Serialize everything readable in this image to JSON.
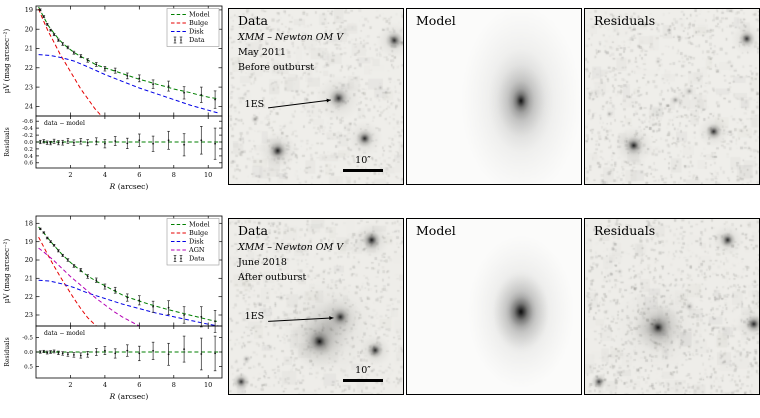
{
  "chart_data": [
    {
      "type": "line",
      "ylabel": "μV (mag arcsec⁻²)",
      "xlabel_italic": "R",
      "xlabel_rest": " (arcsec)",
      "x_min": 0,
      "x_max": 10.8,
      "y_top": 18.8,
      "y_bottom": 24.5,
      "x_ticks": [
        2,
        4,
        6,
        8,
        10
      ],
      "y_ticks": [
        19,
        20,
        21,
        22,
        23,
        24
      ],
      "series": [
        {
          "name": "Model",
          "color": "#007f00",
          "x": [
            0.15,
            0.4,
            0.7,
            1.0,
            1.4,
            1.8,
            2.2,
            2.6,
            3.0,
            3.5,
            4.0,
            4.5,
            5.0,
            5.5,
            6.0,
            6.5,
            7.0,
            7.5,
            8.0,
            8.5,
            9.0,
            9.5,
            10.0,
            10.5
          ],
          "y": [
            18.85,
            19.3,
            19.8,
            20.16,
            20.6,
            20.93,
            21.2,
            21.42,
            21.6,
            21.85,
            22.0,
            22.15,
            22.3,
            22.45,
            22.6,
            22.72,
            22.85,
            22.97,
            23.1,
            23.2,
            23.3,
            23.42,
            23.52,
            23.6
          ]
        },
        {
          "name": "Bulge",
          "color": "#e60000",
          "x": [
            0.15,
            0.4,
            0.7,
            1.0,
            1.4,
            1.8,
            2.2,
            2.6,
            3.0,
            3.4,
            3.8
          ],
          "y": [
            18.95,
            19.5,
            20.1,
            20.6,
            21.3,
            21.9,
            22.5,
            23.1,
            23.6,
            24.1,
            24.5
          ]
        },
        {
          "name": "Disk",
          "color": "#0000e6",
          "x": [
            0.15,
            0.8,
            1.5,
            2.2,
            3.0,
            4.0,
            5.0,
            6.0,
            7.0,
            8.0,
            9.0,
            10.0,
            10.6
          ],
          "y": [
            21.32,
            21.36,
            21.48,
            21.65,
            21.95,
            22.35,
            22.7,
            23.05,
            23.35,
            23.65,
            23.95,
            24.2,
            24.35
          ]
        }
      ],
      "data": {
        "name": "Data",
        "color": "#000000",
        "x": [
          0.25,
          0.45,
          0.65,
          0.85,
          1.05,
          1.3,
          1.55,
          1.85,
          2.2,
          2.6,
          3.0,
          3.5,
          4.0,
          4.6,
          5.3,
          6.0,
          6.8,
          7.7,
          8.6,
          9.6,
          10.4
        ],
        "y": [
          19.0,
          19.35,
          19.75,
          20.05,
          20.28,
          20.57,
          20.77,
          20.95,
          21.22,
          21.4,
          21.62,
          21.83,
          22.05,
          22.15,
          22.42,
          22.55,
          22.85,
          22.95,
          23.3,
          23.4,
          23.65
        ],
        "yerr": [
          0.05,
          0.05,
          0.05,
          0.05,
          0.06,
          0.06,
          0.07,
          0.07,
          0.08,
          0.08,
          0.09,
          0.1,
          0.12,
          0.13,
          0.15,
          0.18,
          0.22,
          0.26,
          0.32,
          0.4,
          0.45
        ]
      },
      "residuals": {
        "ylabel": "Residuals",
        "label": "data − model",
        "y_top": -0.75,
        "y_bottom": 0.75,
        "y_ticks": [
          -0.6,
          -0.4,
          -0.2,
          0.0,
          0.2,
          0.4,
          0.6
        ],
        "y": [
          0.0,
          -0.02,
          0.02,
          0.03,
          -0.02,
          0.02,
          0.02,
          -0.03,
          0.02,
          -0.02,
          0.02,
          -0.02,
          0.05,
          -0.03,
          0.04,
          -0.05,
          0.05,
          -0.05,
          0.08,
          -0.05,
          0.05
        ],
        "yerr": [
          0.05,
          0.05,
          0.05,
          0.05,
          0.06,
          0.06,
          0.07,
          0.07,
          0.08,
          0.08,
          0.09,
          0.1,
          0.12,
          0.13,
          0.15,
          0.18,
          0.22,
          0.26,
          0.32,
          0.4,
          0.45
        ]
      }
    },
    {
      "type": "line",
      "ylabel": "μV (mag arcsec⁻²)",
      "xlabel_italic": "R",
      "xlabel_rest": " (arcsec)",
      "x_min": 0,
      "x_max": 10.8,
      "y_top": 17.6,
      "y_bottom": 23.6,
      "x_ticks": [
        2,
        4,
        6,
        8,
        10
      ],
      "y_ticks": [
        18,
        19,
        20,
        21,
        22,
        23
      ],
      "series": [
        {
          "name": "Model",
          "color": "#007f00",
          "x": [
            0.15,
            0.5,
            1.0,
            1.5,
            2.0,
            2.5,
            3.0,
            3.5,
            4.0,
            4.5,
            5.0,
            5.5,
            6.0,
            6.5,
            7.0,
            7.5,
            8.0,
            8.5,
            9.0,
            9.5,
            10.0,
            10.5
          ],
          "y": [
            18.2,
            18.58,
            19.16,
            19.68,
            20.13,
            20.51,
            20.87,
            21.16,
            21.4,
            21.66,
            21.9,
            22.08,
            22.24,
            22.39,
            22.53,
            22.66,
            22.78,
            22.9,
            23.02,
            23.13,
            23.25,
            23.35
          ]
        },
        {
          "name": "Bulge",
          "color": "#e60000",
          "x": [
            0.15,
            0.4,
            0.7,
            1.0,
            1.4,
            1.8,
            2.2,
            2.6,
            3.0,
            3.5
          ],
          "y": [
            18.75,
            19.2,
            19.75,
            20.25,
            20.9,
            21.5,
            22.1,
            22.65,
            23.15,
            23.6
          ]
        },
        {
          "name": "Disk",
          "color": "#0000e6",
          "x": [
            0.15,
            0.8,
            1.5,
            2.2,
            3.0,
            4.0,
            5.0,
            6.0,
            7.0,
            8.0,
            9.0,
            10.0,
            10.6
          ],
          "y": [
            21.1,
            21.15,
            21.3,
            21.5,
            21.8,
            22.1,
            22.4,
            22.65,
            22.9,
            23.1,
            23.3,
            23.5,
            23.6
          ]
        },
        {
          "name": "AGN",
          "color": "#b400b4",
          "x": [
            0.15,
            0.5,
            1.0,
            1.5,
            2.0,
            2.5,
            3.0,
            3.5,
            4.0,
            4.5,
            5.0,
            6.0
          ],
          "y": [
            19.35,
            19.6,
            20.0,
            20.45,
            20.9,
            21.3,
            21.7,
            22.1,
            22.45,
            22.8,
            23.1,
            23.6
          ]
        }
      ],
      "data": {
        "name": "Data",
        "color": "#000000",
        "x": [
          0.25,
          0.45,
          0.65,
          0.85,
          1.05,
          1.3,
          1.55,
          1.85,
          2.2,
          2.6,
          3.0,
          3.5,
          4.0,
          4.6,
          5.3,
          6.0,
          6.8,
          7.7,
          8.6,
          9.6,
          10.4
        ],
        "y": [
          18.3,
          18.5,
          18.8,
          19.0,
          19.2,
          19.5,
          19.75,
          20.0,
          20.32,
          20.55,
          20.9,
          21.1,
          21.45,
          21.65,
          22.05,
          22.2,
          22.55,
          22.6,
          23.0,
          23.1,
          23.35
        ],
        "yerr": [
          0.04,
          0.04,
          0.05,
          0.05,
          0.05,
          0.06,
          0.06,
          0.07,
          0.08,
          0.09,
          0.1,
          0.12,
          0.14,
          0.16,
          0.2,
          0.25,
          0.3,
          0.38,
          0.45,
          0.55,
          0.6
        ]
      },
      "residuals": {
        "ylabel": "Residuals",
        "label": "data − model",
        "y_top": -0.9,
        "y_bottom": 0.9,
        "y_ticks": [
          -0.5,
          0.0,
          0.5
        ],
        "y": [
          0.0,
          -0.02,
          0.02,
          0.0,
          -0.02,
          0.03,
          0.05,
          0.08,
          0.1,
          0.12,
          0.08,
          0.0,
          -0.05,
          0.05,
          -0.05,
          0.05,
          -0.04,
          0.08,
          -0.1,
          0.07,
          0.05
        ],
        "yerr": [
          0.04,
          0.04,
          0.05,
          0.05,
          0.05,
          0.06,
          0.06,
          0.07,
          0.08,
          0.09,
          0.1,
          0.12,
          0.14,
          0.16,
          0.2,
          0.25,
          0.3,
          0.38,
          0.45,
          0.55,
          0.6
        ]
      }
    }
  ],
  "rows": [
    {
      "panels": [
        {
          "title": "Data",
          "lines": [
            "XMM – Newton OM V",
            "May 2011",
            "Before outburst"
          ],
          "annotation": {
            "text": "1ES",
            "tx": 0.09,
            "ty": 0.55,
            "ax1": 0.225,
            "ay1": 0.565,
            "ax2": 0.585,
            "ay2": 0.52
          },
          "scalebar": {
            "label": "10″",
            "x1": 0.655,
            "x2": 0.885,
            "y": 0.915
          },
          "sky": {
            "seed": 7,
            "bg": "#efeeea",
            "noise": 1000,
            "noise_alpha": 0.14,
            "sources": [
              {
                "x": 0.63,
                "y": 0.51,
                "r": 0.055,
                "a": 0.8
              },
              {
                "x": 0.63,
                "y": 0.51,
                "r": 0.13,
                "a": 0.25
              },
              {
                "x": 0.28,
                "y": 0.81,
                "r": 0.05,
                "a": 0.9
              },
              {
                "x": 0.28,
                "y": 0.81,
                "r": 0.11,
                "a": 0.3
              },
              {
                "x": 0.78,
                "y": 0.74,
                "r": 0.05,
                "a": 0.85
              },
              {
                "x": 0.78,
                "y": 0.74,
                "r": 0.1,
                "a": 0.25
              },
              {
                "x": 0.95,
                "y": 0.18,
                "r": 0.05,
                "a": 0.8
              },
              {
                "x": 0.95,
                "y": 0.18,
                "r": 0.1,
                "a": 0.25
              },
              {
                "x": 0.15,
                "y": 0.63,
                "r": 0.025,
                "a": 0.45
              },
              {
                "x": 0.47,
                "y": 0.33,
                "r": 0.02,
                "a": 0.25
              },
              {
                "x": 0.87,
                "y": 0.45,
                "r": 0.018,
                "a": 0.25
              }
            ]
          }
        },
        {
          "title": "Model",
          "sky": {
            "seed": 3,
            "bg": "#fbfbfa",
            "noise": 0,
            "noise_alpha": 0,
            "sources": [
              {
                "x": 0.655,
                "y": 0.525,
                "r": 0.05,
                "a": 0.92,
                "sy": 1.4
              },
              {
                "x": 0.655,
                "y": 0.525,
                "r": 0.14,
                "a": 0.45,
                "sy": 1.5
              },
              {
                "x": 0.655,
                "y": 0.525,
                "r": 0.34,
                "a": 0.28,
                "sy": 1.6
              }
            ]
          }
        },
        {
          "title": "Residuals",
          "sky": {
            "seed": 11,
            "bg": "#efeeea",
            "noise": 1100,
            "noise_alpha": 0.16,
            "sources": [
              {
                "x": 0.28,
                "y": 0.78,
                "r": 0.05,
                "a": 0.88
              },
              {
                "x": 0.28,
                "y": 0.78,
                "r": 0.11,
                "a": 0.3
              },
              {
                "x": 0.74,
                "y": 0.7,
                "r": 0.045,
                "a": 0.8
              },
              {
                "x": 0.74,
                "y": 0.7,
                "r": 0.09,
                "a": 0.25
              },
              {
                "x": 0.93,
                "y": 0.17,
                "r": 0.045,
                "a": 0.8
              },
              {
                "x": 0.93,
                "y": 0.17,
                "r": 0.09,
                "a": 0.22
              },
              {
                "x": 0.52,
                "y": 0.52,
                "r": 0.03,
                "a": 0.4
              },
              {
                "x": 0.6,
                "y": 0.47,
                "r": 0.025,
                "a": 0.35
              },
              {
                "x": 0.14,
                "y": 0.6,
                "r": 0.02,
                "a": 0.35
              },
              {
                "x": 0.42,
                "y": 0.3,
                "r": 0.02,
                "a": 0.25
              }
            ]
          }
        }
      ]
    },
    {
      "panels": [
        {
          "title": "Data",
          "lines": [
            "XMM – Newton OM V",
            "June 2018",
            "After outburst"
          ],
          "annotation": {
            "text": "1ES",
            "tx": 0.09,
            "ty": 0.56,
            "ax1": 0.225,
            "ay1": 0.585,
            "ax2": 0.6,
            "ay2": 0.565
          },
          "scalebar": {
            "label": "10″",
            "x1": 0.655,
            "x2": 0.885,
            "y": 0.915
          },
          "sky": {
            "seed": 21,
            "bg": "#eeede9",
            "noise": 1000,
            "noise_alpha": 0.15,
            "sources": [
              {
                "x": 0.57,
                "y": 0.62,
                "r": 0.28,
                "a": 0.18
              },
              {
                "x": 0.52,
                "y": 0.7,
                "r": 0.06,
                "a": 0.95
              },
              {
                "x": 0.52,
                "y": 0.7,
                "r": 0.16,
                "a": 0.4
              },
              {
                "x": 0.64,
                "y": 0.56,
                "r": 0.05,
                "a": 0.85
              },
              {
                "x": 0.64,
                "y": 0.56,
                "r": 0.12,
                "a": 0.3
              },
              {
                "x": 0.82,
                "y": 0.12,
                "r": 0.05,
                "a": 0.9
              },
              {
                "x": 0.82,
                "y": 0.12,
                "r": 0.1,
                "a": 0.3
              },
              {
                "x": 0.84,
                "y": 0.75,
                "r": 0.045,
                "a": 0.85
              },
              {
                "x": 0.84,
                "y": 0.75,
                "r": 0.09,
                "a": 0.28
              },
              {
                "x": 0.07,
                "y": 0.93,
                "r": 0.05,
                "a": 0.85
              },
              {
                "x": 0.1,
                "y": 0.8,
                "r": 0.025,
                "a": 0.4
              },
              {
                "x": 0.3,
                "y": 0.45,
                "r": 0.02,
                "a": 0.3
              }
            ]
          }
        },
        {
          "title": "Model",
          "sky": {
            "seed": 5,
            "bg": "#fbfbfa",
            "noise": 0,
            "noise_alpha": 0,
            "sources": [
              {
                "x": 0.655,
                "y": 0.53,
                "r": 0.07,
                "a": 0.95,
                "sy": 1.25
              },
              {
                "x": 0.655,
                "y": 0.53,
                "r": 0.16,
                "a": 0.5,
                "sy": 1.35
              },
              {
                "x": 0.655,
                "y": 0.53,
                "r": 0.3,
                "a": 0.3,
                "sy": 1.45
              }
            ]
          }
        },
        {
          "title": "Residuals",
          "sky": {
            "seed": 31,
            "bg": "#eeede9",
            "noise": 1200,
            "noise_alpha": 0.17,
            "sources": [
              {
                "x": 0.42,
                "y": 0.62,
                "r": 0.26,
                "a": 0.15
              },
              {
                "x": 0.42,
                "y": 0.62,
                "r": 0.14,
                "a": 0.38
              },
              {
                "x": 0.42,
                "y": 0.62,
                "r": 0.055,
                "a": 0.92
              },
              {
                "x": 0.97,
                "y": 0.6,
                "r": 0.05,
                "a": 0.85
              },
              {
                "x": 0.97,
                "y": 0.6,
                "r": 0.1,
                "a": 0.25
              },
              {
                "x": 0.82,
                "y": 0.12,
                "r": 0.045,
                "a": 0.85
              },
              {
                "x": 0.82,
                "y": 0.12,
                "r": 0.09,
                "a": 0.25
              },
              {
                "x": 0.08,
                "y": 0.93,
                "r": 0.045,
                "a": 0.8
              },
              {
                "x": 0.6,
                "y": 0.5,
                "r": 0.03,
                "a": 0.35
              },
              {
                "x": 0.2,
                "y": 0.3,
                "r": 0.02,
                "a": 0.25
              }
            ]
          }
        }
      ]
    }
  ]
}
